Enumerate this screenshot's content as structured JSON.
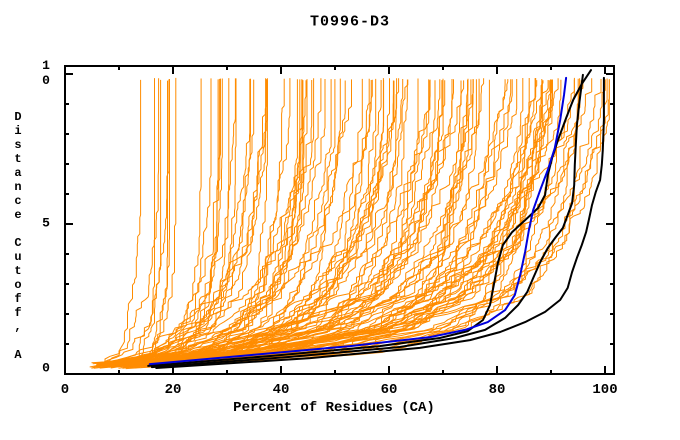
{
  "title": "T0996-D3",
  "chart_data": {
    "type": "line",
    "title": "T0996-D3",
    "xlabel": "Percent of Residues (CA)",
    "ylabel": "Distance Cutoff, A",
    "xlim": [
      0,
      101.7
    ],
    "ylim": [
      0,
      10.27
    ],
    "grid": false,
    "legend": "none",
    "x_ticks": {
      "major": [
        {
          "value": 0,
          "label": "0"
        },
        {
          "value": 20,
          "label": "20"
        },
        {
          "value": 40,
          "label": "40"
        },
        {
          "value": 60,
          "label": "60"
        },
        {
          "value": 80,
          "label": "80"
        },
        {
          "value": 100,
          "label": "100"
        }
      ],
      "minor": [
        10,
        30,
        50,
        70,
        90
      ]
    },
    "y_ticks": {
      "major": [
        {
          "value": 0,
          "label": "0"
        },
        {
          "value": 5,
          "label": "5"
        },
        {
          "value": 10,
          "label": "10"
        }
      ],
      "minor": [
        1,
        2,
        3,
        4,
        6,
        7,
        8,
        9
      ]
    },
    "series": [
      {
        "id": "highlighted-black-1",
        "color": "#000000",
        "width": 2,
        "points": [
          [
            15.4,
            0.27
          ],
          [
            38.0,
            0.6
          ],
          [
            58.3,
            0.93
          ],
          [
            69.4,
            1.2
          ],
          [
            74.6,
            1.43
          ],
          [
            77.4,
            1.8
          ],
          [
            78.7,
            2.3
          ],
          [
            79.4,
            2.97
          ],
          [
            80.2,
            3.73
          ],
          [
            81.1,
            4.3
          ],
          [
            82.8,
            4.73
          ],
          [
            85.2,
            5.13
          ],
          [
            87.6,
            5.53
          ],
          [
            88.9,
            5.97
          ],
          [
            89.4,
            6.63
          ],
          [
            90.2,
            7.2
          ],
          [
            91.3,
            7.8
          ],
          [
            92.8,
            8.53
          ],
          [
            94.1,
            9.13
          ],
          [
            95.7,
            9.67
          ],
          [
            97.4,
            10.13
          ]
        ]
      },
      {
        "id": "highlighted-black-2",
        "color": "#000000",
        "width": 2,
        "points": [
          [
            16.1,
            0.23
          ],
          [
            41.7,
            0.57
          ],
          [
            62.0,
            0.9
          ],
          [
            72.2,
            1.2
          ],
          [
            77.8,
            1.47
          ],
          [
            81.5,
            1.87
          ],
          [
            83.9,
            2.3
          ],
          [
            85.6,
            2.73
          ],
          [
            86.7,
            3.2
          ],
          [
            88.0,
            3.73
          ],
          [
            89.4,
            4.2
          ],
          [
            90.9,
            4.57
          ],
          [
            92.2,
            4.87
          ],
          [
            93.1,
            5.3
          ],
          [
            93.9,
            5.7
          ],
          [
            94.3,
            6.3
          ],
          [
            94.4,
            6.97
          ],
          [
            94.6,
            7.63
          ],
          [
            94.8,
            8.3
          ],
          [
            95.2,
            8.97
          ],
          [
            95.6,
            9.53
          ],
          [
            95.9,
            9.97
          ]
        ]
      },
      {
        "id": "highlighted-black-3",
        "color": "#000000",
        "width": 2,
        "points": [
          [
            16.9,
            0.2
          ],
          [
            45.4,
            0.53
          ],
          [
            65.7,
            0.87
          ],
          [
            75.0,
            1.13
          ],
          [
            80.6,
            1.4
          ],
          [
            85.2,
            1.73
          ],
          [
            88.9,
            2.07
          ],
          [
            91.7,
            2.47
          ],
          [
            93.1,
            2.87
          ],
          [
            93.9,
            3.4
          ],
          [
            94.8,
            3.87
          ],
          [
            95.7,
            4.3
          ],
          [
            96.5,
            4.73
          ],
          [
            97.0,
            5.13
          ],
          [
            97.6,
            5.63
          ],
          [
            98.3,
            6.07
          ],
          [
            99.1,
            6.47
          ],
          [
            99.4,
            6.97
          ],
          [
            99.6,
            7.47
          ],
          [
            99.8,
            8.47
          ],
          [
            99.8,
            9.3
          ],
          [
            99.8,
            9.87
          ]
        ]
      },
      {
        "id": "highlighted-blue",
        "color": "#0000DD",
        "width": 2,
        "points": [
          [
            15.7,
            0.33
          ],
          [
            34.3,
            0.63
          ],
          [
            52.8,
            0.93
          ],
          [
            67.6,
            1.23
          ],
          [
            74.1,
            1.47
          ],
          [
            78.3,
            1.73
          ],
          [
            81.5,
            2.13
          ],
          [
            83.3,
            2.63
          ],
          [
            84.3,
            3.3
          ],
          [
            85.2,
            4.07
          ],
          [
            85.9,
            4.8
          ],
          [
            86.7,
            5.47
          ],
          [
            88.0,
            6.13
          ],
          [
            89.4,
            6.8
          ],
          [
            90.7,
            7.53
          ],
          [
            91.7,
            8.47
          ],
          [
            92.4,
            9.3
          ],
          [
            92.8,
            9.87
          ]
        ]
      }
    ],
    "ensemble": {
      "id": "server-model-curves",
      "color": "#FF8C00",
      "width": 1,
      "count": 115,
      "seed": 11,
      "start_percent_range": [
        4.2,
        16
      ],
      "end_percent_range": [
        14,
        100.8
      ],
      "cutoff_range": [
        0.15,
        9.87
      ]
    }
  },
  "layout_colors": {
    "background": "#FFFFFF",
    "axis": "#000000",
    "text": "#000000"
  }
}
